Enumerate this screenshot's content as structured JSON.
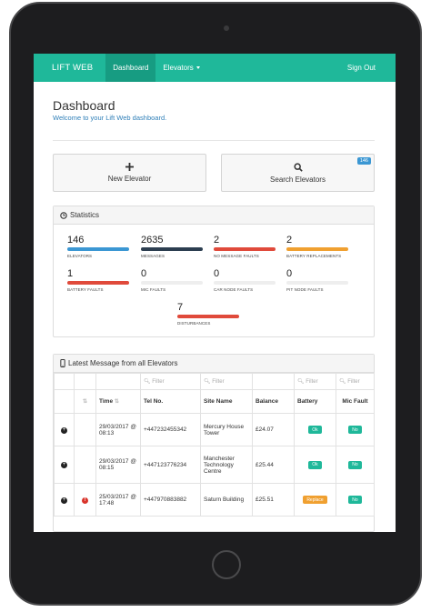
{
  "navbar": {
    "brand": "LIFT WEB",
    "dashboard": "Dashboard",
    "elevators": "Elevators",
    "signout": "Sign Out"
  },
  "header": {
    "title": "Dashboard",
    "subtitle": "Welcome to your Lift Web dashboard."
  },
  "actions": {
    "new_elevator": "New Elevator",
    "search_elevators": "Search Elevators",
    "search_badge": "146"
  },
  "statistics": {
    "title": "Statistics",
    "items": [
      {
        "value": "146",
        "label": "ELEVATORS",
        "color": "#3b97d3"
      },
      {
        "value": "2635",
        "label": "MESSAGES",
        "color": "#2c3e50"
      },
      {
        "value": "2",
        "label": "NO MESSAGE FAULTS",
        "color": "#e04a3b"
      },
      {
        "value": "2",
        "label": "BATTERY REPLACEMENTS",
        "color": "#f0a030"
      },
      {
        "value": "1",
        "label": "BATTERY FAULTS",
        "color": "#e04a3b"
      },
      {
        "value": "0",
        "label": "MIC FAULTS",
        "color": "#eeeeee"
      },
      {
        "value": "0",
        "label": "CAR NODE FAULTS",
        "color": "#eeeeee"
      },
      {
        "value": "0",
        "label": "PIT NODE FAULTS",
        "color": "#eeeeee"
      },
      {
        "value": "7",
        "label": "DISTURBANCES",
        "color": "#e04a3b"
      }
    ]
  },
  "messages": {
    "title": "Latest Message from all Elevators",
    "filter_placeholder": "Filter",
    "columns": [
      "Time",
      "Tel No.",
      "Site Name",
      "Balance",
      "Battery",
      "Mic Fault"
    ],
    "rows": [
      {
        "time": "29/03/2017 @ 08:13",
        "tel": "+447232455342",
        "site": "Mercury House Tower",
        "balance": "£24.07",
        "battery": "Ok",
        "mic": "No",
        "warning": false
      },
      {
        "time": "29/03/2017 @ 08:15",
        "tel": "+447123776234",
        "site": "Manchester Technology Centre",
        "balance": "£25.44",
        "battery": "Ok",
        "mic": "No",
        "warning": false
      },
      {
        "time": "25/03/2017 @ 17:48",
        "tel": "+447970883882",
        "site": "Saturn Building",
        "balance": "£25.51",
        "battery": "Replace",
        "mic": "No",
        "warning": true
      }
    ]
  }
}
